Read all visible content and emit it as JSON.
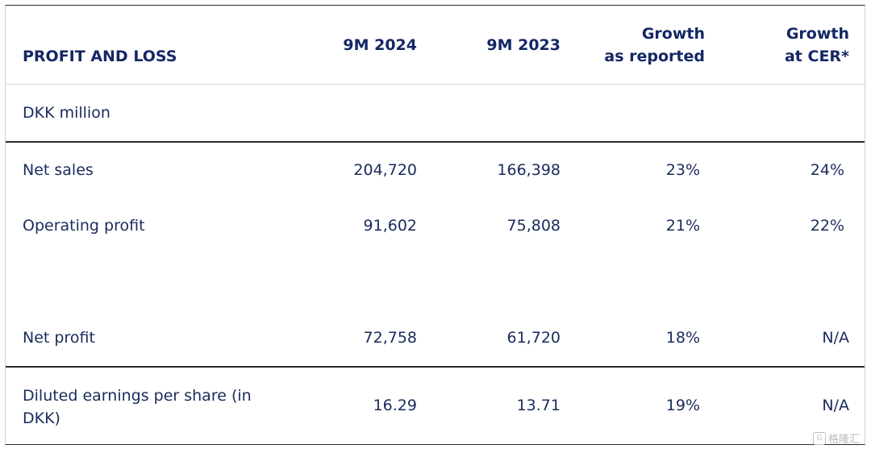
{
  "table": {
    "header": {
      "title": "PROFIT AND LOSS",
      "col1": "9M 2024",
      "col2": "9M 2023",
      "col3_line1": "Growth",
      "col3_line2": "as reported",
      "col4_line1": "Growth",
      "col4_line2": "at CER*"
    },
    "unit": "DKK million",
    "rows": [
      {
        "label": "Net sales",
        "v2024": "204,720",
        "v2023": "166,398",
        "growth_reported": "23%",
        "growth_cer": "24%"
      },
      {
        "label": "Operating profit",
        "v2024": "91,602",
        "v2023": "75,808",
        "growth_reported": "21%",
        "growth_cer": "22%"
      },
      {
        "label": "Net profit",
        "v2024": "72,758",
        "v2023": "61,720",
        "growth_reported": "18%",
        "growth_cer": "N/A"
      },
      {
        "label_line1": "Diluted earnings per share (in",
        "label_line2": "DKK)",
        "v2024": "16.29",
        "v2023": "13.71",
        "growth_reported": "19%",
        "growth_cer": "N/A"
      }
    ]
  },
  "watermark": {
    "icon": "G",
    "text": "格隆汇"
  }
}
